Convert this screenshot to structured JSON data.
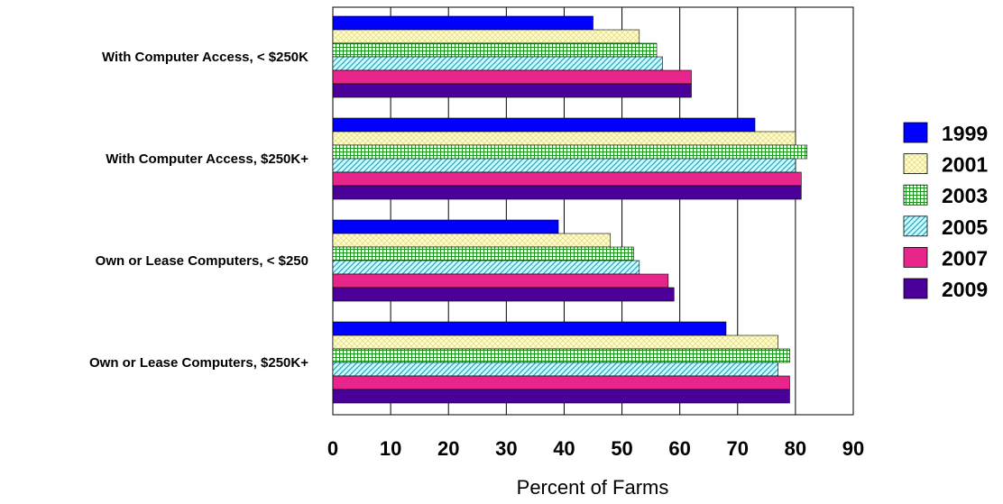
{
  "chart_data": {
    "type": "bar",
    "orientation": "horizontal",
    "categories": [
      "With Computer Access, < $250K",
      "With Computer Access, $250K+",
      "Own or Lease Computers, < $250",
      "Own or Lease Computers, $250K+"
    ],
    "series": [
      {
        "name": "1999",
        "color": "#0000ff",
        "pattern": "solid",
        "values": [
          45,
          73,
          39,
          68
        ]
      },
      {
        "name": "2001",
        "color": "#ffffcc",
        "pattern": "crosshatch",
        "values": [
          53,
          80,
          48,
          77
        ]
      },
      {
        "name": "2003",
        "color": "#b6ecb6",
        "pattern": "grid",
        "values": [
          56,
          82,
          52,
          79
        ]
      },
      {
        "name": "2005",
        "color": "#ccffff",
        "pattern": "diagonal",
        "values": [
          57,
          80,
          53,
          77
        ]
      },
      {
        "name": "2007",
        "color": "#e8258a",
        "pattern": "solid",
        "values": [
          62,
          81,
          58,
          79
        ]
      },
      {
        "name": "2009",
        "color": "#4b0099",
        "pattern": "solid",
        "values": [
          62,
          81,
          59,
          79
        ]
      }
    ],
    "xlabel": "Percent of Farms",
    "ylabel": "",
    "title": "",
    "xlim": [
      0,
      90
    ],
    "xticks": [
      "0",
      "10",
      "20",
      "30",
      "40",
      "50",
      "60",
      "70",
      "80",
      "90"
    ],
    "grid": "vertical",
    "legend": "right"
  }
}
